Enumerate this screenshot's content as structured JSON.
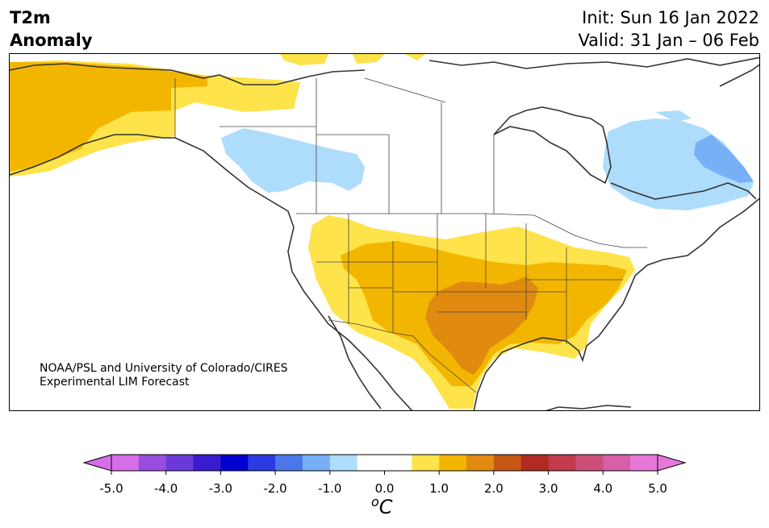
{
  "title": {
    "line1": "T2m",
    "line2": "Anomaly"
  },
  "header_right": {
    "init": "Init: Sun 16 Jan 2022",
    "valid": "Valid: 31 Jan – 06 Feb"
  },
  "credit": {
    "line1": "NOAA/PSL and University of Colorado/CIRES",
    "line2": "Experimental LIM Forecast"
  },
  "colorbar": {
    "ticks": [
      "-5.0",
      "-4.0",
      "-3.0",
      "-2.0",
      "-1.0",
      "0.0",
      "1.0",
      "2.0",
      "3.0",
      "4.0",
      "5.0"
    ],
    "unit_superscript": "o",
    "unit": "C",
    "colors": [
      "#d66ee8",
      "#9a4ee0",
      "#6a3ad9",
      "#3a1ccf",
      "#0000d0",
      "#2a3ae0",
      "#4a78e8",
      "#78b0f5",
      "#aedcfb",
      "#ffffff",
      "#ffffff",
      "#fee34a",
      "#f3b600",
      "#e08a10",
      "#c55816",
      "#b22a22",
      "#c23a4c",
      "#cc4f78",
      "#d860a8",
      "#e878d8"
    ],
    "under_color": "#d66ee8",
    "over_color": "#e878d8"
  },
  "map": {
    "region": "North America",
    "palette": {
      "warm1": "#fee34a",
      "warm2": "#f3b600",
      "warm3": "#e08a10",
      "cool1": "#aedcfb",
      "cool2": "#78b0f5",
      "coast": "#333333",
      "border": "#444444"
    }
  }
}
